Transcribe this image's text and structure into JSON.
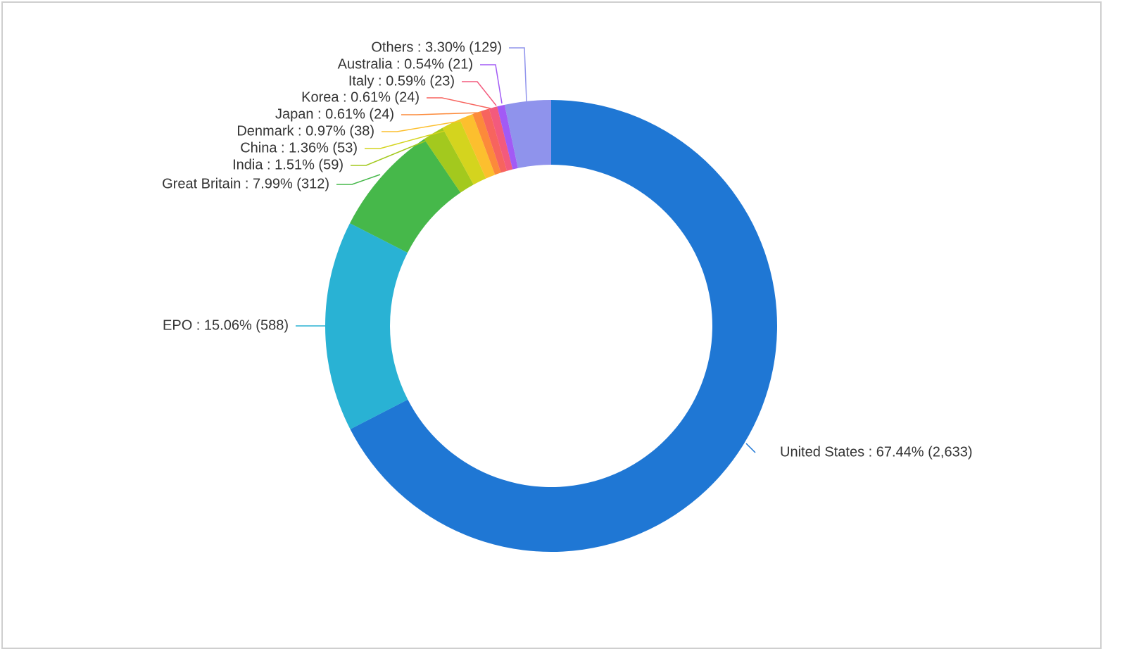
{
  "chart_data": {
    "type": "pie",
    "variant": "donut",
    "title": "",
    "legend": "none",
    "start_angle_deg": 0,
    "direction": "clockwise",
    "slices": [
      {
        "name": "United States",
        "percent": "67.44%",
        "value": 2633,
        "value_label": "2,633",
        "color": "#1f77d4"
      },
      {
        "name": "EPO",
        "percent": "15.06%",
        "value": 588,
        "value_label": "588",
        "color": "#29b2d4"
      },
      {
        "name": "Great Britain",
        "percent": "7.99%",
        "value": 312,
        "value_label": "312",
        "color": "#46b84a"
      },
      {
        "name": "India",
        "percent": "1.51%",
        "value": 59,
        "value_label": "59",
        "color": "#a3c91e"
      },
      {
        "name": "China",
        "percent": "1.36%",
        "value": 53,
        "value_label": "53",
        "color": "#d4d41e"
      },
      {
        "name": "Denmark",
        "percent": "0.97%",
        "value": 38,
        "value_label": "38",
        "color": "#fcbf2e"
      },
      {
        "name": "Japan",
        "percent": "0.61%",
        "value": 24,
        "value_label": "24",
        "color": "#fc8a3a"
      },
      {
        "name": "Korea",
        "percent": "0.61%",
        "value": 24,
        "value_label": "24",
        "color": "#f7645e"
      },
      {
        "name": "Italy",
        "percent": "0.59%",
        "value": 23,
        "value_label": "23",
        "color": "#f35a7d"
      },
      {
        "name": "Australia",
        "percent": "0.54%",
        "value": 21,
        "value_label": "21",
        "color": "#a25af5"
      },
      {
        "name": "Others",
        "percent": "3.30%",
        "value": 129,
        "value_label": "129",
        "color": "#8f93ec"
      }
    ]
  }
}
